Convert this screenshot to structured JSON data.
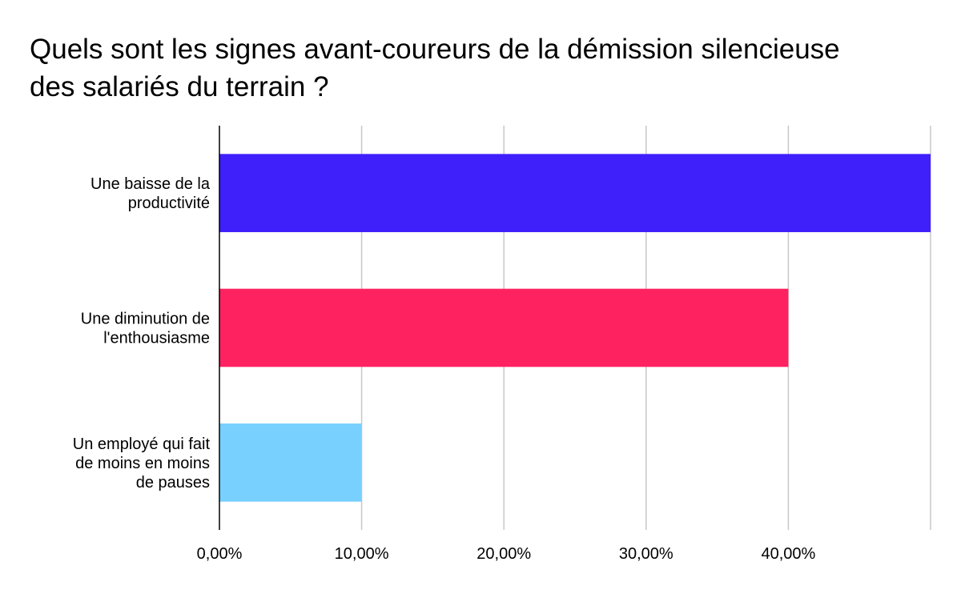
{
  "chart_data": {
    "type": "bar",
    "orientation": "horizontal",
    "title_lines": [
      "Quels sont les signes avant-coureurs de la démission silencieuse",
      "des salariés du terrain ?"
    ],
    "title": "Quels sont les signes avant-coureurs de la démission silencieuse des salariés du terrain ?",
    "categories": [
      "Une baisse de la productivité",
      "Une diminution de l'enthousiasme",
      "Un employé qui fait de moins en moins de pauses"
    ],
    "category_label_lines": [
      [
        "Une baisse de la",
        "productivité"
      ],
      [
        "Une diminution de",
        "l'enthousiasme"
      ],
      [
        "Un employé qui fait",
        "de moins en moins",
        "de pauses"
      ]
    ],
    "values": [
      50,
      40,
      10
    ],
    "colors": [
      "#3f20fb",
      "#ff2261",
      "#77d0fd"
    ],
    "xlim": [
      0,
      50
    ],
    "x_ticks": [
      0,
      10,
      20,
      30,
      40
    ],
    "x_tick_labels": [
      "0,00%",
      "10,00%",
      "20,00%",
      "30,00%",
      "40,00%"
    ],
    "grid": true,
    "gridline_color": "#c8c8c8",
    "legend": "none",
    "xlabel": "",
    "ylabel": ""
  }
}
